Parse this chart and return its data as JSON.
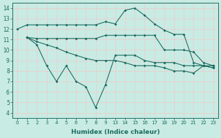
{
  "xlabel": "Humidex (Indice chaleur)",
  "bg_color": "#c8ebe3",
  "line_color": "#1a6b60",
  "grid_color": "#f5c8c8",
  "ylim": [
    3.5,
    14.5
  ],
  "yticks": [
    4,
    5,
    6,
    7,
    8,
    9,
    10,
    11,
    12,
    13,
    14
  ],
  "xtick_positions": [
    0,
    1,
    2,
    3,
    4,
    5,
    6,
    7,
    8,
    9,
    10,
    11,
    12,
    13,
    14,
    15,
    16,
    17,
    18,
    19,
    20
  ],
  "xtick_labels": [
    "0",
    "1",
    "2",
    "3",
    "4",
    "5",
    "6",
    "7",
    "8",
    "9",
    "13",
    "14",
    "15",
    "16",
    "17",
    "18",
    "19",
    "20",
    "21",
    "22",
    "23"
  ],
  "line1_x": [
    0,
    1,
    2,
    3,
    4,
    5,
    6,
    7,
    8,
    9,
    10,
    11,
    12,
    13,
    14,
    15,
    16,
    17,
    18,
    19,
    20
  ],
  "line1_y": [
    12.0,
    12.4,
    12.4,
    12.4,
    12.4,
    12.4,
    12.4,
    12.4,
    12.4,
    12.7,
    12.5,
    13.8,
    14.0,
    13.3,
    12.5,
    11.9,
    11.5,
    11.5,
    8.8,
    8.5,
    8.5
  ],
  "line2_x": [
    1,
    2,
    3,
    4,
    5,
    6,
    7,
    8,
    9,
    10,
    11,
    12,
    13,
    14,
    15,
    16,
    17,
    18,
    19,
    20
  ],
  "line2_y": [
    11.2,
    11.1,
    11.1,
    11.1,
    11.1,
    11.1,
    11.1,
    11.1,
    11.4,
    11.4,
    11.4,
    11.4,
    11.4,
    11.4,
    10.0,
    10.0,
    10.0,
    9.8,
    8.8,
    8.5
  ],
  "line3_x": [
    1,
    2,
    3,
    4,
    5,
    6,
    7,
    8,
    9,
    10,
    11,
    12,
    13,
    14,
    15,
    16,
    17,
    18,
    19,
    20
  ],
  "line3_y": [
    11.2,
    10.8,
    10.5,
    10.2,
    9.8,
    9.5,
    9.2,
    9.0,
    9.0,
    9.0,
    8.8,
    8.5,
    8.5,
    8.5,
    8.3,
    8.0,
    8.0,
    7.8,
    8.5,
    8.3
  ],
  "line4_x": [
    1,
    2,
    3,
    4,
    5,
    6,
    7,
    8,
    9,
    10,
    11,
    12,
    13,
    14,
    15,
    16,
    17,
    18,
    19,
    20
  ],
  "line4_y": [
    11.2,
    10.5,
    8.5,
    7.0,
    8.5,
    7.0,
    6.5,
    4.5,
    6.7,
    9.5,
    9.5,
    9.5,
    9.0,
    8.8,
    8.8,
    8.8,
    8.5,
    8.5,
    8.5,
    8.3
  ]
}
